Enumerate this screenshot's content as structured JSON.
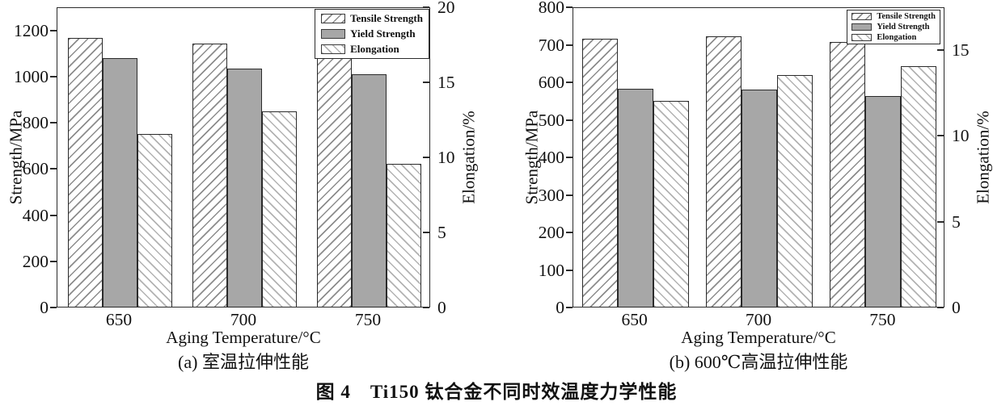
{
  "figure": {
    "caption": "图 4　Ti150 钛合金不同时效温度力学性能"
  },
  "colors": {
    "frame": "#2b2b2b",
    "yield_bar_fill": "#a7a7a7",
    "tensile_hatch_line": "#8c8c8c",
    "elongation_hatch_line": "#b2b2b2",
    "text": "#111111"
  },
  "chart_data": [
    {
      "type": "bar",
      "panel_label": "(a) 室温拉伸性能",
      "xlabel": "Aging Temperature/°C",
      "ylabel_left": "Strength/MPa",
      "ylabel_right": "Elongation/%",
      "categories": [
        "650",
        "700",
        "750"
      ],
      "series": [
        {
          "name": "Tensile Strength",
          "axis": "left",
          "pattern": "hatch-fwd",
          "values": [
            1165,
            1140,
            1095
          ]
        },
        {
          "name": "Yield Strength",
          "axis": "left",
          "pattern": "solid",
          "values": [
            1075,
            1030,
            1005
          ]
        },
        {
          "name": "Elongation",
          "axis": "right",
          "pattern": "hatch-bwd",
          "values": [
            11.5,
            13.0,
            9.5
          ]
        }
      ],
      "left_axis": {
        "ticks": [
          0,
          200,
          400,
          600,
          800,
          1000,
          1200
        ],
        "max": 1300
      },
      "right_axis": {
        "ticks": [
          0,
          5,
          10,
          15,
          20
        ],
        "max": 20
      },
      "legend": [
        "Tensile Strength",
        "Yield Strength",
        "Elongation"
      ],
      "legend_position": "top-right",
      "grid": false
    },
    {
      "type": "bar",
      "panel_label": "(b) 600℃高温拉伸性能",
      "xlabel": "Aging Temperature/°C",
      "ylabel_left": "Strength/MPa",
      "ylabel_right": "Elongation/%",
      "categories": [
        "650",
        "700",
        "750"
      ],
      "series": [
        {
          "name": "Tensile Strength",
          "axis": "left",
          "pattern": "hatch-fwd",
          "values": [
            715,
            720,
            705
          ]
        },
        {
          "name": "Yield Strength",
          "axis": "left",
          "pattern": "solid",
          "values": [
            580,
            578,
            562
          ]
        },
        {
          "name": "Elongation",
          "axis": "right",
          "pattern": "hatch-bwd",
          "values": [
            12.0,
            13.5,
            14.0
          ]
        }
      ],
      "left_axis": {
        "ticks": [
          0,
          100,
          200,
          300,
          400,
          500,
          600,
          700,
          800
        ],
        "max": 800
      },
      "right_axis": {
        "ticks": [
          0,
          5,
          10,
          15
        ],
        "max": 17.5
      },
      "legend": [
        "Tensile Strength",
        "Yield Strength",
        "Elongation"
      ],
      "legend_position": "top-right",
      "grid": false
    }
  ]
}
